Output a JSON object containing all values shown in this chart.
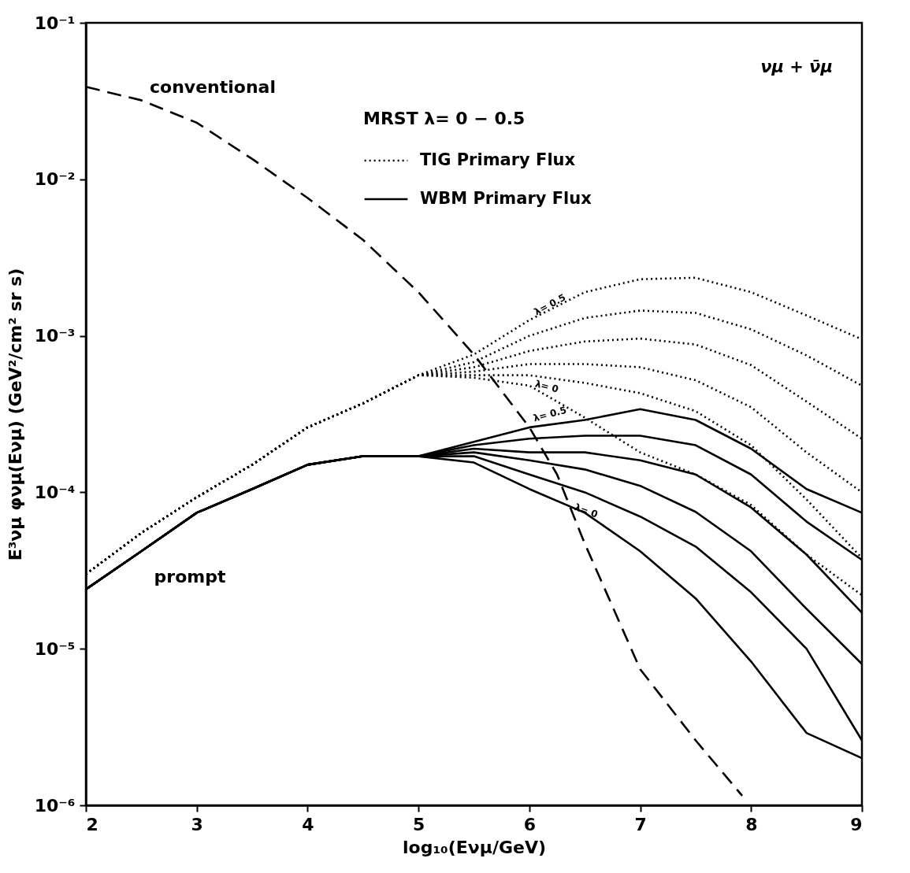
{
  "chart_data": {
    "type": "line",
    "xlabel": "log₁₀(Eνμ/GeV)",
    "ylabel": "E³νμ φνμ(Eνμ)  (GeV²/cm² sr s)",
    "legend_title": "MRST  λ= 0 − 0.5",
    "legend": "top right",
    "log": "y",
    "xlim": [
      2,
      9
    ],
    "xticks": [
      2,
      3,
      4,
      5,
      6,
      7,
      8,
      9
    ],
    "ylim": [
      1e-06,
      0.1
    ],
    "yticks": [
      {
        "value": 1e-06,
        "label": "10⁻⁶"
      },
      {
        "value": 1e-05,
        "label": "10⁻⁵"
      },
      {
        "value": 0.0001,
        "label": "10⁻⁴"
      },
      {
        "value": 0.001,
        "label": "10⁻³"
      },
      {
        "value": 0.01,
        "label": "10⁻²"
      },
      {
        "value": 0.1,
        "label": "10⁻¹"
      }
    ],
    "grid": false,
    "series": [
      {
        "color": "#000000",
        "line_style": "dashed",
        "x": [
          2,
          2.5,
          3,
          3.5,
          4,
          4.5,
          5,
          5.5,
          6,
          6.25,
          6.5,
          7,
          7.5,
          7.92
        ],
        "values": [
          0.039,
          0.032,
          0.023,
          0.0135,
          0.0076,
          0.0041,
          0.0019,
          0.00076,
          0.00026,
          0.00013,
          4.7e-05,
          7.4e-06,
          2.6e-06,
          1.15e-06
        ]
      },
      {
        "name": "TIG Primary Flux",
        "color": "#000000",
        "line_style": "dotted",
        "x": [
          2,
          2.5,
          3,
          3.5,
          4,
          4.5,
          5,
          5.5,
          6,
          6.5,
          7,
          7.5,
          8,
          8.5,
          9
        ],
        "values": [
          3e-05,
          5.5e-05,
          9.3e-05,
          0.00015,
          0.00026,
          0.00037,
          0.00056,
          0.00076,
          0.00126,
          0.0019,
          0.0023,
          0.00235,
          0.0019,
          0.00135,
          0.00095
        ]
      },
      {
        "color": "#000000",
        "line_style": "dotted",
        "x": [
          2,
          2.5,
          3,
          3.5,
          4,
          4.5,
          5,
          5.5,
          6,
          6.5,
          7,
          7.5,
          8,
          8.5,
          9
        ],
        "values": [
          3e-05,
          5.5e-05,
          9.3e-05,
          0.00015,
          0.00026,
          0.00037,
          0.00056,
          0.00068,
          0.001,
          0.0013,
          0.00145,
          0.0014,
          0.0011,
          0.00075,
          0.00048
        ]
      },
      {
        "color": "#000000",
        "line_style": "dotted",
        "x": [
          2,
          2.5,
          3,
          3.5,
          4,
          4.5,
          5,
          5.5,
          6,
          6.5,
          7,
          7.5,
          8,
          8.5,
          9
        ],
        "values": [
          3e-05,
          5.5e-05,
          9.3e-05,
          0.00015,
          0.00026,
          0.00037,
          0.00056,
          0.00063,
          0.0008,
          0.00092,
          0.00096,
          0.00088,
          0.00065,
          0.00038,
          0.00022
        ]
      },
      {
        "color": "#000000",
        "line_style": "dotted",
        "x": [
          2,
          2.5,
          3,
          3.5,
          4,
          4.5,
          5,
          5.5,
          6,
          6.5,
          7,
          7.5,
          8,
          8.5,
          9
        ],
        "values": [
          3e-05,
          5.5e-05,
          9.3e-05,
          0.00015,
          0.00026,
          0.00037,
          0.00056,
          0.00059,
          0.00066,
          0.00066,
          0.00063,
          0.00052,
          0.00035,
          0.00018,
          0.0001
        ]
      },
      {
        "color": "#000000",
        "line_style": "dotted",
        "x": [
          2,
          2.5,
          3,
          3.5,
          4,
          4.5,
          5,
          5.5,
          6,
          6.5,
          7,
          7.5,
          8,
          8.5,
          9
        ],
        "values": [
          3e-05,
          5.5e-05,
          9.3e-05,
          0.00015,
          0.00026,
          0.00037,
          0.00056,
          0.00056,
          0.00056,
          0.0005,
          0.00043,
          0.00033,
          0.0002,
          9e-05,
          3.8e-05
        ]
      },
      {
        "color": "#000000",
        "line_style": "dotted",
        "x": [
          2,
          2.5,
          3,
          3.5,
          4,
          4.5,
          5,
          5.5,
          6,
          6.5,
          7,
          7.5,
          8,
          8.5,
          9
        ],
        "values": [
          3e-05,
          5.5e-05,
          9.3e-05,
          0.00015,
          0.00026,
          0.00037,
          0.00056,
          0.00054,
          0.00048,
          0.0003,
          0.00018,
          0.00013,
          8.3e-05,
          4e-05,
          2.2e-05
        ]
      },
      {
        "name": "WBM Primary Flux",
        "color": "#000000",
        "line_style": "solid",
        "x": [
          2,
          2.5,
          3,
          3.5,
          4,
          4.5,
          5,
          5.5,
          6,
          6.5,
          7,
          7.5,
          8,
          8.5,
          9
        ],
        "values": [
          2.4e-05,
          4.2e-05,
          7.4e-05,
          0.000105,
          0.00015,
          0.00017,
          0.00017,
          0.00021,
          0.00026,
          0.00029,
          0.00034,
          0.00029,
          0.00019,
          0.000105,
          7.4e-05
        ]
      },
      {
        "color": "#000000",
        "line_style": "solid",
        "x": [
          2,
          2.5,
          3,
          3.5,
          4,
          4.5,
          5,
          5.5,
          6,
          6.5,
          7,
          7.5,
          8,
          8.5,
          9
        ],
        "values": [
          2.4e-05,
          4.2e-05,
          7.4e-05,
          0.000105,
          0.00015,
          0.00017,
          0.00017,
          0.0002,
          0.00022,
          0.00023,
          0.00023,
          0.0002,
          0.00013,
          6.5e-05,
          3.7e-05
        ]
      },
      {
        "color": "#000000",
        "line_style": "solid",
        "x": [
          2,
          2.5,
          3,
          3.5,
          4,
          4.5,
          5,
          5.5,
          6,
          6.5,
          7,
          7.5,
          8,
          8.5,
          9
        ],
        "values": [
          2.4e-05,
          4.2e-05,
          7.4e-05,
          0.000105,
          0.00015,
          0.00017,
          0.00017,
          0.00019,
          0.00018,
          0.00018,
          0.00016,
          0.00013,
          8e-05,
          4e-05,
          1.7e-05
        ]
      },
      {
        "color": "#000000",
        "line_style": "solid",
        "x": [
          2,
          2.5,
          3,
          3.5,
          4,
          4.5,
          5,
          5.5,
          6,
          6.5,
          7,
          7.5,
          8,
          8.5,
          9
        ],
        "values": [
          2.4e-05,
          4.2e-05,
          7.4e-05,
          0.000105,
          0.00015,
          0.00017,
          0.00017,
          0.00018,
          0.00016,
          0.00014,
          0.00011,
          7.5e-05,
          4.2e-05,
          1.8e-05,
          8e-06
        ]
      },
      {
        "color": "#000000",
        "line_style": "solid",
        "x": [
          2,
          2.5,
          3,
          3.5,
          4,
          4.5,
          5,
          5.5,
          6,
          6.5,
          7,
          7.5,
          8,
          8.5,
          9
        ],
        "values": [
          2.4e-05,
          4.2e-05,
          7.4e-05,
          0.000105,
          0.00015,
          0.00017,
          0.00017,
          0.00017,
          0.00013,
          0.0001,
          7e-05,
          4.5e-05,
          2.3e-05,
          1e-05,
          2.6e-06
        ]
      },
      {
        "color": "#000000",
        "line_style": "solid",
        "x": [
          2,
          2.5,
          3,
          3.5,
          4,
          4.5,
          5,
          5.5,
          6,
          6.5,
          7,
          7.5,
          8,
          8.5,
          9
        ],
        "values": [
          2.4e-05,
          4.2e-05,
          7.4e-05,
          0.000105,
          0.00015,
          0.00017,
          0.00017,
          0.000155,
          0.000105,
          7.4e-05,
          4.2e-05,
          2.1e-05,
          8.3e-06,
          2.9e-06,
          2e-06
        ]
      }
    ],
    "annotations": [
      "conventional",
      "prompt",
      "λ= 0.5",
      "λ= 0",
      "λ= 0.5",
      "λ= 0",
      "νμ + ν̄μ"
    ]
  }
}
